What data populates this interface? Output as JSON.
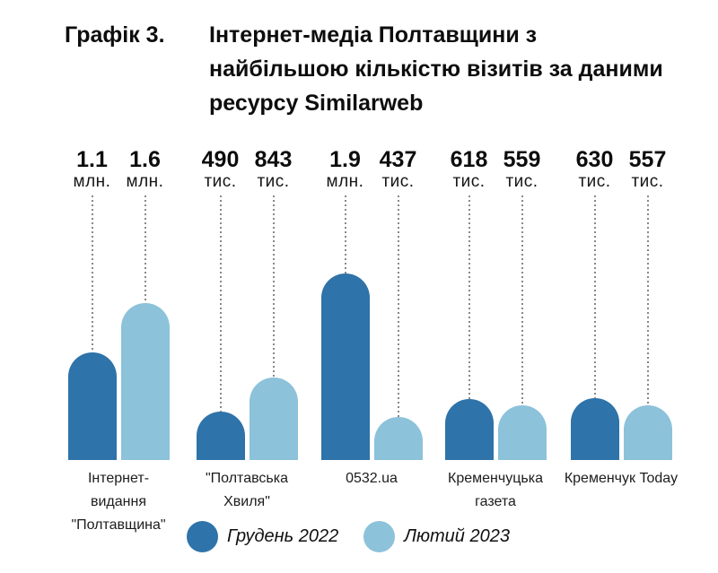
{
  "header": {
    "label": "Графік 3.",
    "title": "Інтернет-медіа Полтавщини з найбільшою кількістю візитів за даними ресурсу Similarweb",
    "title_lines": [
      "Інтернет-медіа Полтавщини з",
      "найбільшою кількістю візитів за даними",
      "ресурсу Similarweb"
    ]
  },
  "chart_data": {
    "type": "bar",
    "title": "Графік 3. Інтернет-медіа Полтавщини з найбільшою кількістю візитів за даними ресурсу Similarweb",
    "xlabel": "",
    "ylabel": "",
    "unit_note": "visits, values in thousands",
    "grid": false,
    "legend_position": "bottom",
    "ylim": [
      0,
      1900
    ],
    "categories": [
      "Інтернет-видання \"Полтавщина\"",
      "\"Полтавська Хвиля\"",
      "0532.ua",
      "Кременчуцька газета",
      "Кременчук Today"
    ],
    "categories_display": [
      [
        "Інтернет-",
        "видання",
        "\"Полтавщина\""
      ],
      [
        "\"Полтавська",
        "Хвиля\""
      ],
      [
        "0532.ua"
      ],
      [
        "Кременчуцька",
        "газета"
      ],
      [
        "Кременчук Today"
      ]
    ],
    "series": [
      {
        "name": "Грудень 2022",
        "color": "#2E73A9",
        "values_thousands": [
          1100,
          490,
          1900,
          618,
          630
        ],
        "value_labels": [
          "1.1 млн.",
          "490 тис.",
          "1.9 млн.",
          "618 тис.",
          "630 тис."
        ]
      },
      {
        "name": "Лютий 2023",
        "color": "#8CC2DA",
        "values_thousands": [
          1600,
          843,
          437,
          559,
          557
        ],
        "value_labels": [
          "1.6 млн.",
          "843 тис.",
          "437 тис.",
          "559 тис.",
          "557 тис."
        ]
      }
    ],
    "colors": {
      "series_dark": "#2E73A9",
      "series_light": "#8CC2DA",
      "guide_line": "#898989",
      "background": "#FFFFFF"
    }
  },
  "legend": {
    "items": [
      {
        "label": "Грудень 2022",
        "color": "#2E73A9"
      },
      {
        "label": "Лютий 2023",
        "color": "#8CC2DA"
      }
    ]
  }
}
